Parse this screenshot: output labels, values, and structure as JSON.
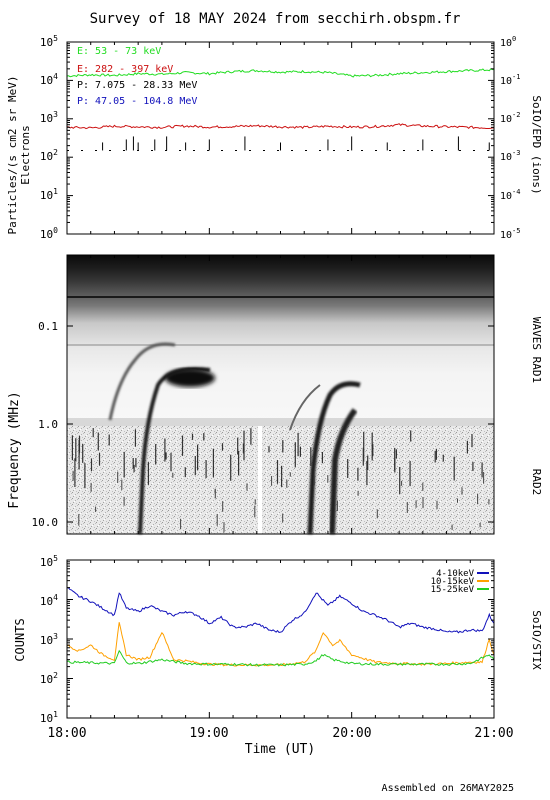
{
  "title": "Survey of 18 MAY 2024 from secchirh.obspm.fr",
  "footer": "Assembled on 26MAY2025",
  "colors": {
    "electron_low": "#22dd22",
    "electron_high": "#cc1111",
    "proton_low": "#000000",
    "proton_high": "#1111bb",
    "stix_4_10": "#1111bb",
    "stix_10_15": "#ffa000",
    "stix_15_25": "#22cc22"
  },
  "x_axis": {
    "label": "Time (UT)",
    "ticks": [
      "18:00",
      "19:00",
      "20:00",
      "21:00"
    ]
  },
  "chart_data": [
    {
      "type": "line",
      "panel": "SoIO/EPD",
      "ylabel": "Particles/(s cm2 sr MeV)",
      "ylabel2": "Electrons",
      "right_label": "SoIO/EPD (ions)",
      "y_scale": "log",
      "ylim": [
        1,
        100000
      ],
      "y_ticks": [
        "10^0",
        "10^1",
        "10^2",
        "10^3",
        "10^4",
        "10^5"
      ],
      "right_scale": "log",
      "right_ylim": [
        1e-05,
        1
      ],
      "right_ticks": [
        "10^-5",
        "10^-4",
        "10^-3",
        "10^-2",
        "10^-1",
        "10^0"
      ],
      "legend_placement": "top-left",
      "series": [
        {
          "name": "E: 53 - 73 keV",
          "color_key": "electron_low",
          "x_minutes": [
            0,
            10,
            20,
            30,
            40,
            50,
            60,
            70,
            80,
            90,
            100,
            110,
            120,
            130,
            140,
            150,
            160,
            170,
            180
          ],
          "values": [
            13000,
            14000,
            13500,
            15000,
            14500,
            16000,
            15000,
            17000,
            18000,
            16500,
            17000,
            16000,
            13000,
            13500,
            15000,
            16000,
            17000,
            18000,
            19000
          ]
        },
        {
          "name": "E: 282 - 397 keV",
          "color_key": "electron_high",
          "x_minutes": [
            0,
            10,
            20,
            30,
            40,
            50,
            60,
            70,
            80,
            90,
            100,
            110,
            120,
            130,
            140,
            150,
            160,
            170,
            180
          ],
          "values": [
            600,
            580,
            640,
            620,
            600,
            650,
            610,
            630,
            660,
            620,
            600,
            640,
            610,
            630,
            700,
            650,
            620,
            600,
            580
          ]
        },
        {
          "name": "P: 7.075 - 28.33 MeV",
          "color_key": "proton_low",
          "x_minutes": [
            0,
            15,
            30,
            45,
            60,
            75,
            90,
            105,
            120,
            135,
            150,
            165,
            180
          ],
          "values": [
            150,
            150,
            150,
            150,
            150,
            150,
            150,
            150,
            150,
            150,
            150,
            150,
            150
          ]
        },
        {
          "name": "P: 47.05 - 104.8 MeV",
          "color_key": "proton_high",
          "x_minutes": [],
          "values": []
        }
      ]
    },
    {
      "type": "heatmap",
      "panel": "Radio spectrogram",
      "ylabel": "Frequency (MHz)",
      "y_scale": "log",
      "y_ticks": [
        "0.1",
        "1.0",
        "10.0"
      ],
      "right_label_top": "WAVES RAD1",
      "right_label_bottom": "RAD2",
      "colormap": "grayscale (dark = intense)",
      "bursts": [
        {
          "start_minute": 33,
          "kind": "type III"
        },
        {
          "start_minute": 47,
          "kind": "type III"
        },
        {
          "start_minute": 103,
          "kind": "type III"
        },
        {
          "start_minute": 108,
          "kind": "type III"
        }
      ]
    },
    {
      "type": "line",
      "panel": "SoIO/STIX",
      "ylabel": "COUNTS",
      "right_label": "SoIO/STIX",
      "y_scale": "log",
      "ylim": [
        10,
        100000
      ],
      "y_ticks": [
        "10^1",
        "10^2",
        "10^3",
        "10^4",
        "10^5"
      ],
      "legend_placement": "top-right",
      "series": [
        {
          "name": "4-10keV",
          "color_key": "stix_4_10",
          "x_minutes": [
            0,
            5,
            10,
            15,
            20,
            22,
            25,
            30,
            35,
            40,
            45,
            50,
            55,
            60,
            65,
            70,
            75,
            80,
            85,
            90,
            95,
            100,
            105,
            110,
            115,
            120,
            125,
            130,
            135,
            140,
            145,
            150,
            155,
            160,
            165,
            170,
            175,
            178,
            180
          ],
          "values": [
            20000,
            12000,
            9000,
            6000,
            4000,
            15000,
            6000,
            5000,
            7000,
            5000,
            4000,
            5000,
            4000,
            2500,
            3500,
            2000,
            2000,
            2500,
            1700,
            1500,
            3000,
            4500,
            15000,
            7000,
            12000,
            8000,
            5000,
            4000,
            3000,
            2000,
            2500,
            2000,
            1800,
            1500,
            1500,
            1700,
            1600,
            4000,
            2500
          ]
        },
        {
          "name": "10-15keV",
          "color_key": "stix_10_15",
          "x_minutes": [
            0,
            5,
            10,
            15,
            20,
            22,
            25,
            30,
            35,
            40,
            45,
            50,
            55,
            60,
            70,
            80,
            90,
            100,
            105,
            108,
            112,
            115,
            120,
            130,
            140,
            150,
            160,
            170,
            175,
            178,
            180
          ],
          "values": [
            700,
            500,
            700,
            400,
            300,
            2500,
            400,
            300,
            350,
            1500,
            300,
            280,
            250,
            230,
            220,
            220,
            220,
            260,
            500,
            1500,
            700,
            900,
            400,
            260,
            240,
            230,
            240,
            260,
            260,
            1000,
            400
          ]
        },
        {
          "name": "15-25keV",
          "color_key": "stix_15_25",
          "x_minutes": [
            0,
            10,
            20,
            22,
            25,
            30,
            40,
            50,
            60,
            70,
            80,
            90,
            100,
            105,
            108,
            112,
            120,
            130,
            140,
            150,
            160,
            170,
            178,
            180
          ],
          "values": [
            260,
            250,
            240,
            500,
            250,
            240,
            300,
            240,
            230,
            230,
            220,
            220,
            230,
            280,
            400,
            300,
            240,
            230,
            230,
            230,
            230,
            240,
            400,
            300
          ]
        }
      ]
    }
  ]
}
